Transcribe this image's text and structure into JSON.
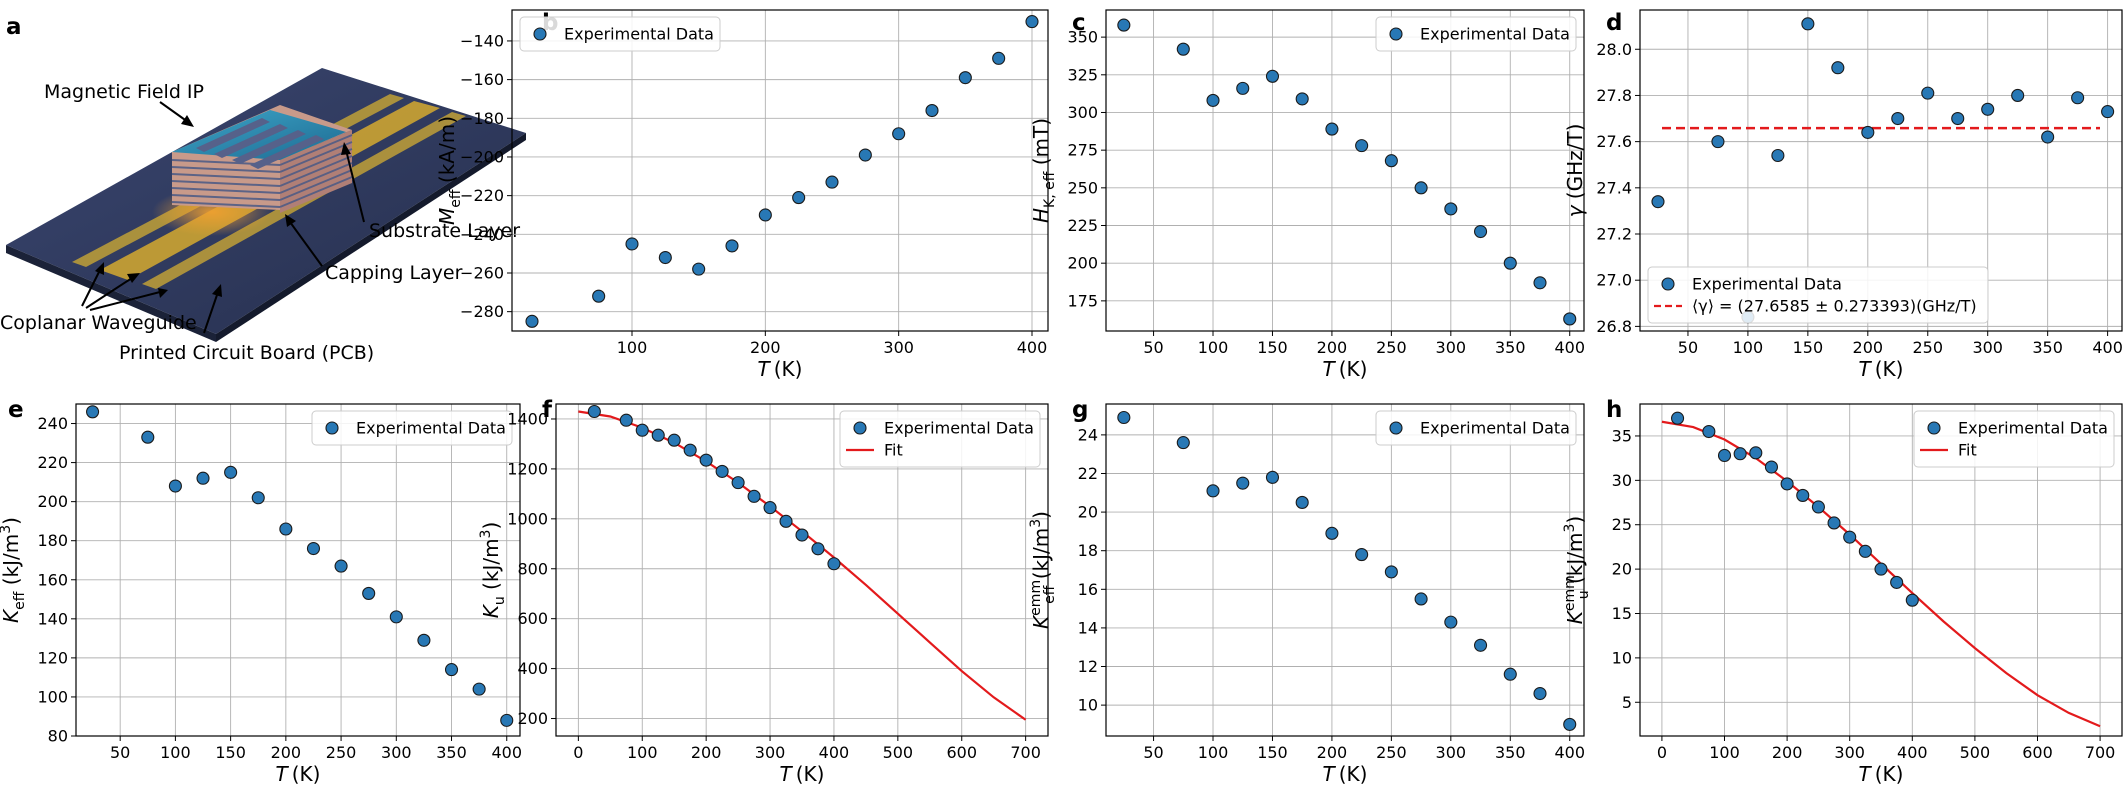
{
  "schematic": {
    "panel": "a",
    "labels": {
      "magnetic": "Magnetic Field IP",
      "substrate": "Substrate Layer",
      "capping": "Capping Layer",
      "cpw": "Coplanar Waveguide",
      "pcb": "Printed Circuit Board (PCB)"
    },
    "colors": {
      "board": "#2e3a5c",
      "strip": "#c9a233",
      "stack": "#c89a8a",
      "film": "#2f8ab0"
    }
  },
  "chart_data": [
    {
      "panel": "b",
      "type": "scatter",
      "xlabel": "T (K)",
      "ylabel": "M_eff (kA/m)",
      "xlim": [
        10,
        412
      ],
      "ylim": [
        -290,
        -124
      ],
      "xticks": [
        100,
        200,
        300,
        400
      ],
      "yticks": [
        -280,
        -260,
        -240,
        -220,
        -200,
        -180,
        -160,
        -140
      ],
      "grid": true,
      "legend": "top-left",
      "series": [
        {
          "name": "Experimental Data",
          "kind": "scatter",
          "color": "#2878b5",
          "x": [
            25,
            75,
            100,
            125,
            150,
            175,
            200,
            225,
            250,
            275,
            300,
            325,
            350,
            375,
            400
          ],
          "y": [
            -285,
            -272,
            -245,
            -252,
            -258,
            -246,
            -230,
            -221,
            -213,
            -199,
            -188,
            -176,
            -159,
            -149,
            -130
          ]
        }
      ]
    },
    {
      "panel": "c",
      "type": "scatter",
      "xlabel": "T (K)",
      "ylabel": "H_K,eff (mT)",
      "xlim": [
        10,
        412
      ],
      "ylim": [
        155,
        368
      ],
      "xticks": [
        50,
        100,
        150,
        200,
        250,
        300,
        350,
        400
      ],
      "yticks": [
        175,
        200,
        225,
        250,
        275,
        300,
        325,
        350
      ],
      "grid": true,
      "legend": "top-right",
      "series": [
        {
          "name": "Experimental Data",
          "kind": "scatter",
          "color": "#2878b5",
          "x": [
            25,
            75,
            100,
            125,
            150,
            175,
            200,
            225,
            250,
            275,
            300,
            325,
            350,
            375,
            400
          ],
          "y": [
            358,
            342,
            308,
            316,
            324,
            309,
            289,
            278,
            268,
            250,
            236,
            221,
            200,
            187,
            163
          ]
        }
      ]
    },
    {
      "panel": "d",
      "type": "scatter",
      "xlabel": "T (K)",
      "ylabel": "γ (GHz/T)",
      "xlim": [
        10,
        412
      ],
      "ylim": [
        26.78,
        28.17
      ],
      "xticks": [
        50,
        100,
        150,
        200,
        250,
        300,
        350,
        400
      ],
      "yticks": [
        26.8,
        27.0,
        27.2,
        27.4,
        27.6,
        27.8,
        28.0
      ],
      "grid": true,
      "legend": "bottom-left",
      "series": [
        {
          "name": "Experimental Data",
          "kind": "scatter",
          "color": "#2878b5",
          "x": [
            25,
            75,
            100,
            125,
            150,
            175,
            200,
            225,
            250,
            275,
            300,
            325,
            350,
            375,
            400
          ],
          "y": [
            27.34,
            27.6,
            26.84,
            27.54,
            28.11,
            27.92,
            27.64,
            27.7,
            27.81,
            27.7,
            27.74,
            27.8,
            27.62,
            27.79,
            27.73
          ]
        },
        {
          "name": "⟨γ⟩ = (27.6585 ± 0.273393)(GHz/T)",
          "kind": "hline",
          "color": "#e31a1c",
          "y": 27.6585
        }
      ]
    },
    {
      "panel": "e",
      "type": "scatter",
      "xlabel": "T (K)",
      "ylabel": "K_eff (kJ/m³)",
      "xlim": [
        10,
        412
      ],
      "ylim": [
        80,
        250
      ],
      "xticks": [
        50,
        100,
        150,
        200,
        250,
        300,
        350,
        400
      ],
      "yticks": [
        80,
        100,
        120,
        140,
        160,
        180,
        200,
        220,
        240
      ],
      "grid": true,
      "legend": "top-right",
      "series": [
        {
          "name": "Experimental Data",
          "kind": "scatter",
          "color": "#2878b5",
          "x": [
            25,
            75,
            100,
            125,
            150,
            175,
            200,
            225,
            250,
            275,
            300,
            325,
            350,
            375,
            400
          ],
          "y": [
            246,
            233,
            208,
            212,
            215,
            202,
            186,
            176,
            167,
            153,
            141,
            129,
            114,
            104,
            88
          ]
        }
      ]
    },
    {
      "panel": "f",
      "type": "scatter",
      "xlabel": "T (K)",
      "ylabel": "K_u (kJ/m³)",
      "xlim": [
        -35,
        735
      ],
      "ylim": [
        130,
        1460
      ],
      "xticks": [
        0,
        100,
        200,
        300,
        400,
        500,
        600,
        700
      ],
      "yticks": [
        200,
        400,
        600,
        800,
        1000,
        1200,
        1400
      ],
      "grid": true,
      "legend": "top-right",
      "series": [
        {
          "name": "Experimental Data",
          "kind": "scatter",
          "color": "#2878b5",
          "x": [
            25,
            75,
            100,
            125,
            150,
            175,
            200,
            225,
            250,
            275,
            300,
            325,
            350,
            375,
            400
          ],
          "y": [
            1430,
            1395,
            1355,
            1335,
            1315,
            1275,
            1235,
            1190,
            1145,
            1090,
            1045,
            990,
            935,
            880,
            820
          ]
        },
        {
          "name": "Fit",
          "kind": "line",
          "color": "#e31a1c",
          "x": [
            0,
            50,
            100,
            150,
            200,
            250,
            300,
            350,
            400,
            450,
            500,
            550,
            600,
            650,
            700
          ],
          "y": [
            1430,
            1410,
            1365,
            1305,
            1230,
            1145,
            1050,
            950,
            845,
            735,
            620,
            505,
            390,
            285,
            195
          ]
        }
      ]
    },
    {
      "panel": "g",
      "type": "scatter",
      "xlabel": "T (K)",
      "ylabel": "K_eff^emm (kJ/m³)",
      "xlim": [
        10,
        412
      ],
      "ylim": [
        8.4,
        25.6
      ],
      "xticks": [
        50,
        100,
        150,
        200,
        250,
        300,
        350,
        400
      ],
      "yticks": [
        10,
        12,
        14,
        16,
        18,
        20,
        22,
        24
      ],
      "grid": true,
      "legend": "top-right",
      "series": [
        {
          "name": "Experimental Data",
          "kind": "scatter",
          "color": "#2878b5",
          "x": [
            25,
            75,
            100,
            125,
            150,
            175,
            200,
            225,
            250,
            275,
            300,
            325,
            350,
            375,
            400
          ],
          "y": [
            24.9,
            23.6,
            21.1,
            21.5,
            21.8,
            20.5,
            18.9,
            17.8,
            16.9,
            15.5,
            14.3,
            13.1,
            11.6,
            10.6,
            9.0
          ]
        }
      ]
    },
    {
      "panel": "h",
      "type": "scatter",
      "xlabel": "T (K)",
      "ylabel": "K_u^emm (kJ/m³)",
      "xlim": [
        -35,
        735
      ],
      "ylim": [
        1.2,
        38.6
      ],
      "xticks": [
        0,
        100,
        200,
        300,
        400,
        500,
        600,
        700
      ],
      "yticks": [
        5,
        10,
        15,
        20,
        25,
        30,
        35
      ],
      "grid": true,
      "legend": "top-right",
      "series": [
        {
          "name": "Experimental Data",
          "kind": "scatter",
          "color": "#2878b5",
          "x": [
            25,
            75,
            100,
            125,
            150,
            175,
            200,
            225,
            250,
            275,
            300,
            325,
            350,
            375,
            400
          ],
          "y": [
            37.0,
            35.5,
            32.8,
            33.0,
            33.1,
            31.5,
            29.6,
            28.3,
            27.0,
            25.2,
            23.6,
            22.0,
            20.0,
            18.5,
            16.5
          ]
        },
        {
          "name": "Fit",
          "kind": "line",
          "color": "#e31a1c",
          "x": [
            0,
            50,
            100,
            150,
            200,
            250,
            300,
            350,
            400,
            450,
            500,
            550,
            600,
            650,
            700
          ],
          "y": [
            36.6,
            36.0,
            34.6,
            32.5,
            29.9,
            27.0,
            23.9,
            20.6,
            17.3,
            14.1,
            11.1,
            8.3,
            5.8,
            3.8,
            2.3
          ]
        }
      ]
    }
  ]
}
